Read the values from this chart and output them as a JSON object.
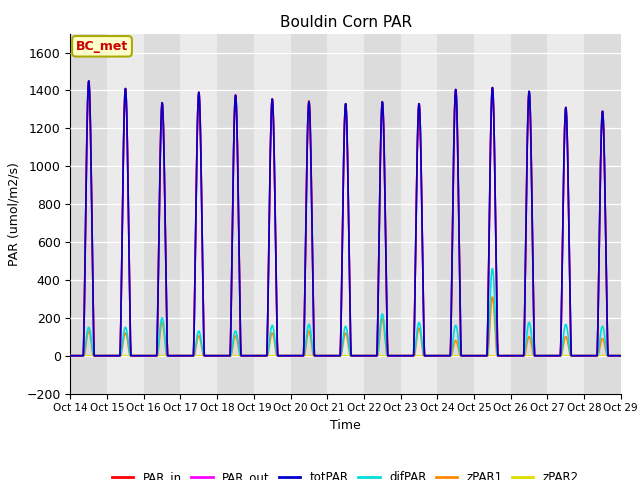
{
  "title": "Bouldin Corn PAR",
  "xlabel": "Time",
  "ylabel": "PAR (umol/m2/s)",
  "ylim": [
    -200,
    1700
  ],
  "yticks": [
    -200,
    0,
    200,
    400,
    600,
    800,
    1000,
    1200,
    1400,
    1600
  ],
  "n_days": 15,
  "annotation_text": "BC_met",
  "annotation_color": "#cc0000",
  "annotation_bg": "#ffffcc",
  "annotation_edge": "#aaaa00",
  "plot_bg_even": "#dcdcdc",
  "plot_bg_odd": "#ebebeb",
  "series": [
    {
      "name": "PAR_in",
      "color": "#ff0000",
      "lw": 1.2
    },
    {
      "name": "PAR_out",
      "color": "#ff00ff",
      "lw": 1.2
    },
    {
      "name": "totPAR",
      "color": "#0000cc",
      "lw": 1.2
    },
    {
      "name": "difPAR",
      "color": "#00dddd",
      "lw": 1.2
    },
    {
      "name": "zPAR1",
      "color": "#ff8800",
      "lw": 1.2
    },
    {
      "name": "zPAR2",
      "color": "#dddd00",
      "lw": 1.2
    }
  ],
  "peak_PAR_in": [
    1450,
    1410,
    1335,
    1390,
    1375,
    1355,
    1345,
    1330,
    1340,
    1330,
    1405,
    1415,
    1395,
    1310,
    1290
  ],
  "peak_PAR_out": [
    1450,
    1410,
    1335,
    1390,
    1375,
    1355,
    1340,
    1330,
    1340,
    1330,
    1405,
    1415,
    1395,
    1310,
    1290
  ],
  "peak_totPAR": [
    1450,
    1410,
    1335,
    1390,
    1375,
    1355,
    1340,
    1330,
    1340,
    1330,
    1405,
    1415,
    1395,
    1310,
    1290
  ],
  "peak_difPAR": [
    150,
    150,
    200,
    130,
    130,
    160,
    165,
    155,
    220,
    175,
    160,
    460,
    175,
    165,
    155
  ],
  "peak_zPAR1": [
    130,
    120,
    175,
    105,
    105,
    120,
    130,
    120,
    195,
    145,
    80,
    310,
    100,
    100,
    90
  ],
  "day_start": 0.35,
  "day_end": 0.65,
  "tick_labels": [
    "Oct 14",
    "Oct 15",
    "Oct 16",
    "Oct 17",
    "Oct 18",
    "Oct 19",
    "Oct 20",
    "Oct 21",
    "Oct 22",
    "Oct 23",
    "Oct 24",
    "Oct 25",
    "Oct 26",
    "Oct 27",
    "Oct 28",
    "Oct 29"
  ]
}
